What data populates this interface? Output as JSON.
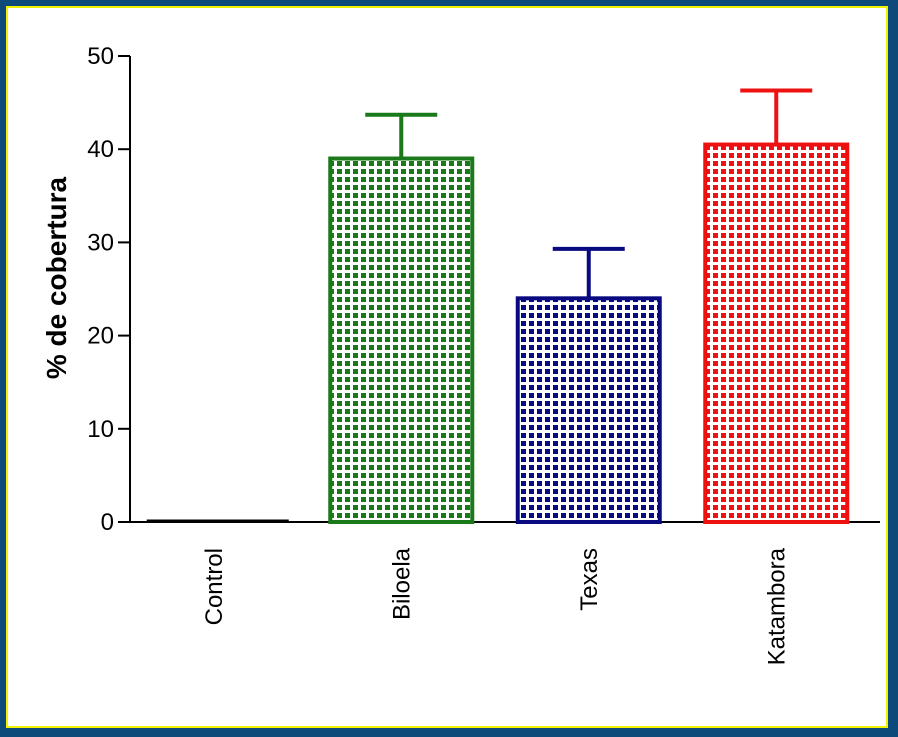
{
  "colors": {
    "background": "#0d4a7a",
    "frame_border": "#f2f200",
    "plot_bg": "#ffffff"
  },
  "chart_data": {
    "type": "bar",
    "title": "",
    "xlabel": "",
    "ylabel": "% de cobertura",
    "ylim": [
      0,
      50
    ],
    "yticks": [
      "0",
      "10",
      "20",
      "30",
      "40",
      "50"
    ],
    "categories": [
      "Control",
      "Biloela",
      "Texas",
      "Katambora"
    ],
    "values": [
      0,
      39,
      24,
      40.5
    ],
    "errors": [
      0,
      4.7,
      5.3,
      5.8
    ],
    "colors": [
      "#000000",
      "#1a7a1a",
      "#0a0a80",
      "#ee1111"
    ],
    "pattern": "dotted-grid",
    "grid": false,
    "legend": "none"
  }
}
